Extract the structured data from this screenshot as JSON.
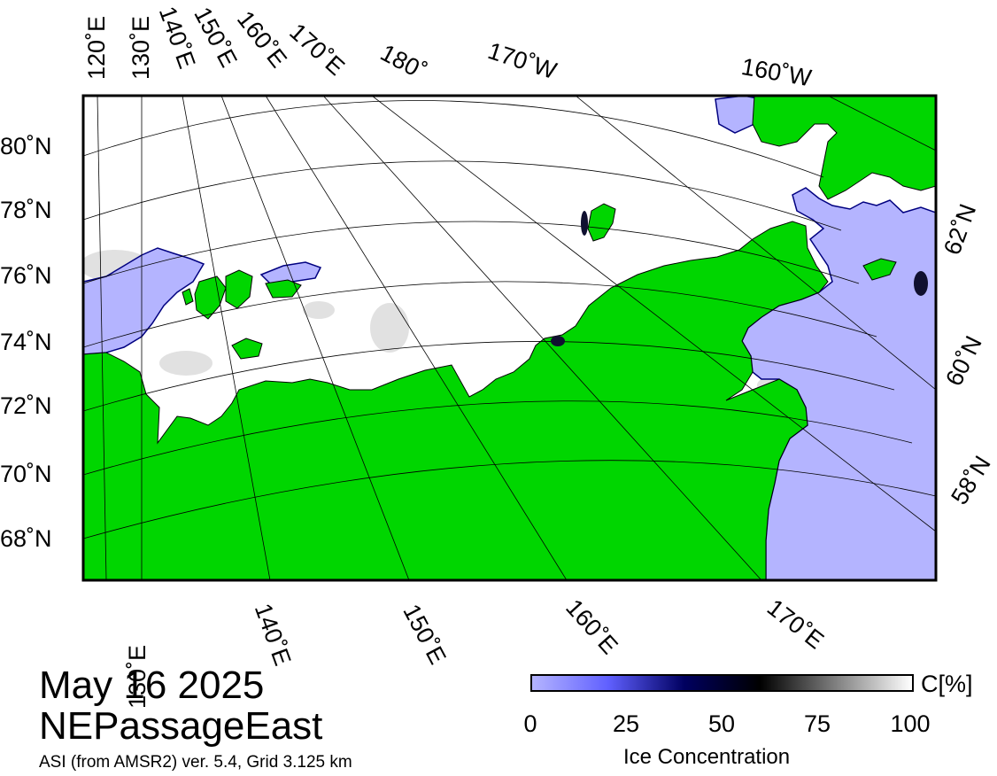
{
  "map": {
    "date": "May 16 2025",
    "region": "NEPassageEast",
    "source": "ASI (from AMSR2) ver. 5.4,  Grid 3.125 km",
    "colors": {
      "land": "#00d600",
      "open_water": "#b4b4ff",
      "ice": "#ffffff",
      "frame": "#000000",
      "graticule": "#000000"
    }
  },
  "graticule": {
    "top_longitudes": [
      "120˚E",
      "130˚E",
      "140˚E",
      "150˚E",
      "160˚E",
      "170˚E",
      "180˚",
      "170˚W",
      "160˚W"
    ],
    "bottom_longitudes": [
      "130˚E",
      "140˚E",
      "150˚E",
      "160˚E",
      "170˚E"
    ],
    "left_latitudes": [
      "80˚N",
      "78˚N",
      "76˚N",
      "74˚N",
      "72˚N",
      "70˚N",
      "68˚N"
    ],
    "right_latitudes": [
      "62˚N",
      "60˚N",
      "58˚N"
    ]
  },
  "colorbar": {
    "title": "Ice Concentration",
    "unit": "C[%]",
    "ticks": [
      "0",
      "25",
      "50",
      "75",
      "100"
    ],
    "range": [
      0,
      100
    ],
    "gradient_colors": [
      "#b4b4ff",
      "#6060ff",
      "#000060",
      "#000000",
      "#808080",
      "#ffffff"
    ]
  }
}
